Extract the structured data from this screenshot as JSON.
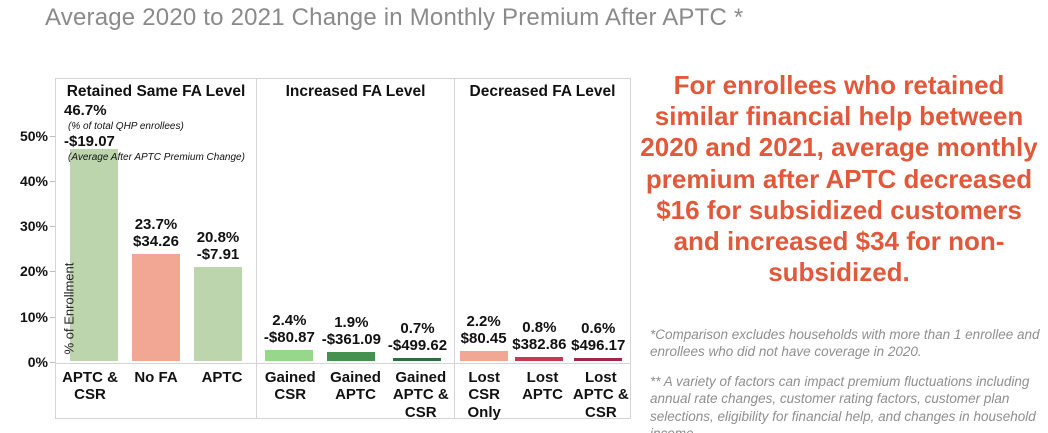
{
  "title": "Average 2020 to 2021 Change in Monthly Premium After APTC *",
  "chart_data": {
    "type": "bar",
    "ylabel": "% of Enrollment",
    "ylim": [
      0,
      55
    ],
    "yticks": [
      {
        "label": "50%",
        "value": 50
      },
      {
        "label": "40%",
        "value": 40
      },
      {
        "label": "30%",
        "value": 30
      },
      {
        "label": "20%",
        "value": 20
      },
      {
        "label": "10%",
        "value": 10
      },
      {
        "label": "0%",
        "value": 0
      }
    ],
    "groups": [
      {
        "header": "Retained Same FA Level",
        "bars": [
          {
            "label": "APTC & CSR",
            "pct": 46.7,
            "pct_label": "46.7%",
            "premium_label": "-$19.07",
            "color": "#bdd5ac",
            "note_pct": "(% of total QHP enrollees)",
            "note_premium": "(Average After APTC Premium Change)"
          },
          {
            "label": "No FA",
            "pct": 23.7,
            "pct_label": "23.7%",
            "premium_label": "$34.26",
            "color": "#f2a795"
          },
          {
            "label": "APTC",
            "pct": 20.8,
            "pct_label": "20.8%",
            "premium_label": "-$7.91",
            "color": "#bdd5ac"
          }
        ]
      },
      {
        "header": "Increased FA Level",
        "bars": [
          {
            "label": "Gained CSR",
            "pct": 2.4,
            "pct_label": "2.4%",
            "premium_label": "-$80.87",
            "color": "#97d78b"
          },
          {
            "label": "Gained APTC",
            "pct": 1.9,
            "pct_label": "1.9%",
            "premium_label": "-$361.09",
            "color": "#45914f"
          },
          {
            "label": "Gained APTC & CSR",
            "pct": 0.7,
            "pct_label": "0.7%",
            "premium_label": "-$499.62",
            "color": "#2e6e3b"
          }
        ]
      },
      {
        "header": "Decreased FA Level",
        "bars": [
          {
            "label": "Lost CSR Only",
            "pct": 2.2,
            "pct_label": "2.2%",
            "premium_label": "$80.45",
            "color": "#f2a795"
          },
          {
            "label": "Lost APTC",
            "pct": 0.8,
            "pct_label": "0.8%",
            "premium_label": "$382.86",
            "color": "#c43a52"
          },
          {
            "label": "Lost APTC & CSR",
            "pct": 0.6,
            "pct_label": "0.6%",
            "premium_label": "$496.17",
            "color": "#a3264a"
          }
        ]
      }
    ]
  },
  "callout": {
    "text": "For enrollees who retained similar financial help between 2020 and 2021, average monthly premium after APTC decreased $16 for subsidized customers and increased $34 for non-subsidized.",
    "color": "#e2583a"
  },
  "footnotes": [
    "*Comparison excludes households with more than 1 enrollee and enrollees who did not have coverage in 2020.",
    "** A variety of factors can impact premium fluctuations including annual rate changes, customer rating factors, customer plan selections, eligibility for financial help, and changes in household income."
  ]
}
